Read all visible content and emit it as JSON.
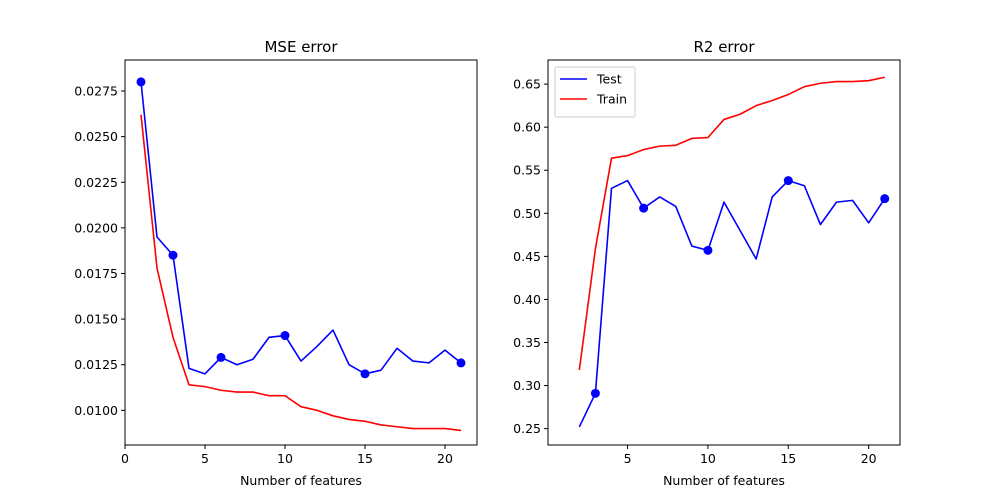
{
  "chart_data": [
    {
      "type": "line",
      "title": "MSE error",
      "xlabel": "Number of features",
      "ylabel": "",
      "xlim": [
        0,
        22
      ],
      "ylim": [
        0.0081,
        0.0292
      ],
      "xticks": [
        0,
        5,
        10,
        15,
        20
      ],
      "xtick_labels": [
        "0",
        "5",
        "10",
        "15",
        "20"
      ],
      "yticks": [
        0.01,
        0.0125,
        0.015,
        0.0175,
        0.02,
        0.0225,
        0.025,
        0.0275
      ],
      "ytick_labels": [
        "0.0100",
        "0.0125",
        "0.0150",
        "0.0175",
        "0.0200",
        "0.0225",
        "0.0250",
        "0.0275"
      ],
      "grid": false,
      "legend": null,
      "series": [
        {
          "color": "#0000ff",
          "x": [
            1,
            2,
            3,
            4,
            5,
            6,
            7,
            8,
            9,
            10,
            11,
            12,
            13,
            14,
            15,
            16,
            17,
            18,
            19,
            20,
            21
          ],
          "y": [
            0.028,
            0.0195,
            0.0185,
            0.0123,
            0.012,
            0.0129,
            0.0125,
            0.0128,
            0.014,
            0.0141,
            0.0127,
            0.0135,
            0.0144,
            0.0125,
            0.012,
            0.0122,
            0.0134,
            0.0127,
            0.0126,
            0.0133,
            0.0126
          ],
          "markers_at": [
            1,
            3,
            6,
            10,
            15,
            21
          ]
        },
        {
          "color": "#ff0000",
          "x": [
            1,
            2,
            3,
            4,
            5,
            6,
            7,
            8,
            9,
            10,
            11,
            12,
            13,
            14,
            15,
            16,
            17,
            18,
            19,
            20,
            21
          ],
          "y": [
            0.0262,
            0.0178,
            0.014,
            0.0114,
            0.0113,
            0.0111,
            0.011,
            0.011,
            0.0108,
            0.0108,
            0.0102,
            0.01,
            0.0097,
            0.0095,
            0.0094,
            0.0092,
            0.0091,
            0.009,
            0.009,
            0.009,
            0.0089
          ],
          "markers_at": []
        }
      ]
    },
    {
      "type": "line",
      "title": "R2 error",
      "xlabel": "Number of features",
      "ylabel": "",
      "xlim": [
        0.05,
        21.95
      ],
      "ylim": [
        0.231,
        0.678
      ],
      "xticks": [
        5,
        10,
        15,
        20
      ],
      "xtick_labels": [
        "5",
        "10",
        "15",
        "20"
      ],
      "yticks": [
        0.25,
        0.3,
        0.35,
        0.4,
        0.45,
        0.5,
        0.55,
        0.6,
        0.65
      ],
      "ytick_labels": [
        "0.25",
        "0.30",
        "0.35",
        "0.40",
        "0.45",
        "0.50",
        "0.55",
        "0.60",
        "0.65"
      ],
      "grid": false,
      "legend": "top-left",
      "series": [
        {
          "name": "Test",
          "color": "#0000ff",
          "x": [
            2,
            3,
            4,
            5,
            6,
            7,
            8,
            9,
            10,
            11,
            12,
            13,
            14,
            15,
            16,
            17,
            18,
            19,
            20,
            21
          ],
          "y": [
            0.252,
            0.291,
            0.529,
            0.538,
            0.506,
            0.519,
            0.508,
            0.462,
            0.457,
            0.513,
            0.48,
            0.447,
            0.519,
            0.538,
            0.532,
            0.487,
            0.513,
            0.515,
            0.489,
            0.517
          ],
          "markers_at": [
            3,
            6,
            10,
            15,
            21
          ]
        },
        {
          "name": "Train",
          "color": "#ff0000",
          "x": [
            2,
            3,
            4,
            5,
            6,
            7,
            8,
            9,
            10,
            11,
            12,
            13,
            14,
            15,
            16,
            17,
            18,
            19,
            20,
            21
          ],
          "y": [
            0.318,
            0.459,
            0.564,
            0.567,
            0.574,
            0.578,
            0.579,
            0.587,
            0.588,
            0.609,
            0.615,
            0.625,
            0.631,
            0.638,
            0.647,
            0.651,
            0.653,
            0.653,
            0.654,
            0.658
          ],
          "markers_at": []
        }
      ]
    }
  ]
}
